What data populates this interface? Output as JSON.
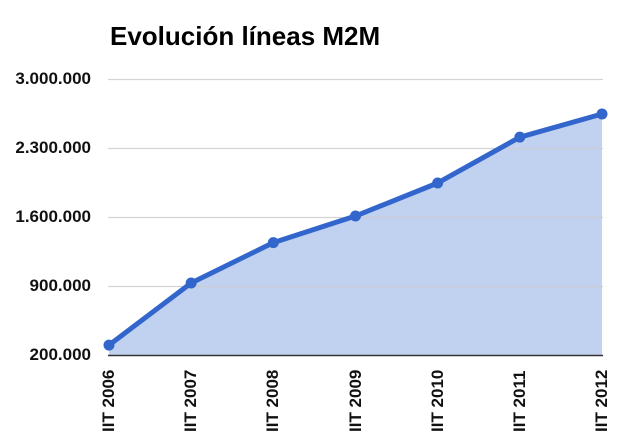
{
  "chart_data": {
    "type": "area",
    "title": "Evolución líneas M2M",
    "xlabel": "",
    "ylabel": "",
    "categories": [
      "IIT 2006",
      "IIT 2007",
      "IIT 2008",
      "IIT 2009",
      "IIT 2010",
      "IIT 2011",
      "IIT 2012"
    ],
    "series": [
      {
        "name": "Líneas M2M",
        "values": [
          300000,
          930000,
          1340000,
          1610000,
          1945000,
          2410000,
          2645000
        ],
        "color": "#3366cc",
        "fill": "#c1d1f0"
      }
    ],
    "ylim": [
      200000,
      3000000
    ],
    "yticks": [
      200000,
      900000,
      1600000,
      2300000,
      3000000
    ],
    "ytick_labels": [
      "200.000",
      "900.000",
      "1.600.000",
      "2.300.000",
      "3.000.000"
    ],
    "grid": true,
    "legend": "none",
    "markers": true
  },
  "colors": {
    "line": "#3366cc",
    "fill": "#c1d1f0",
    "grid": "#cccccc",
    "baseline": "#333333"
  }
}
